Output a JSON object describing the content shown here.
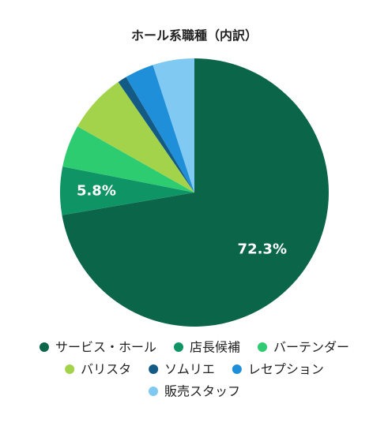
{
  "chart_data": {
    "type": "pie",
    "title": "ホール系職種（内訳）",
    "categories": [
      "サービス・ホール",
      "店長候補",
      "バーテンダー",
      "バリスタ",
      "ソムリエ",
      "レセプション",
      "販売スタッフ"
    ],
    "values": [
      72.3,
      5.8,
      5.1,
      7.2,
      1.1,
      3.5,
      5.0
    ],
    "value_labels": [
      "72.3%",
      "5.8%",
      null,
      null,
      null,
      null,
      null
    ],
    "colors": [
      "#0b6548",
      "#0f9466",
      "#2ecc71",
      "#a3d34a",
      "#135b85",
      "#1e8fd8",
      "#80c9f2"
    ],
    "legend": "bottom"
  }
}
